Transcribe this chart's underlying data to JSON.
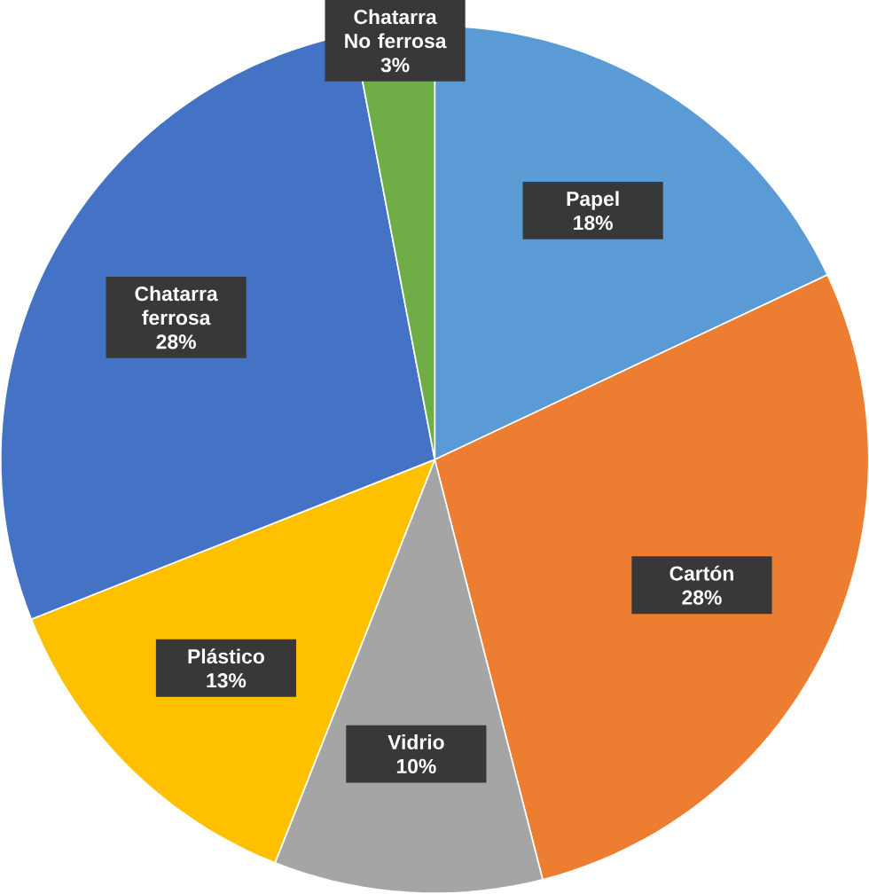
{
  "chart_data": {
    "type": "pie",
    "categories": [
      "Papel",
      "Cartón",
      "Vidrio",
      "Plástico",
      "Chatarra ferrosa",
      "Chatarra No ferrosa"
    ],
    "values": [
      18,
      28,
      10,
      13,
      28,
      3
    ],
    "value_labels": [
      "18%",
      "28%",
      "10%",
      "13%",
      "28%",
      "3%"
    ],
    "colors": [
      "#5b9bd5",
      "#ed7d31",
      "#a5a5a5",
      "#ffc000",
      "#4472c4",
      "#70ad47"
    ]
  }
}
